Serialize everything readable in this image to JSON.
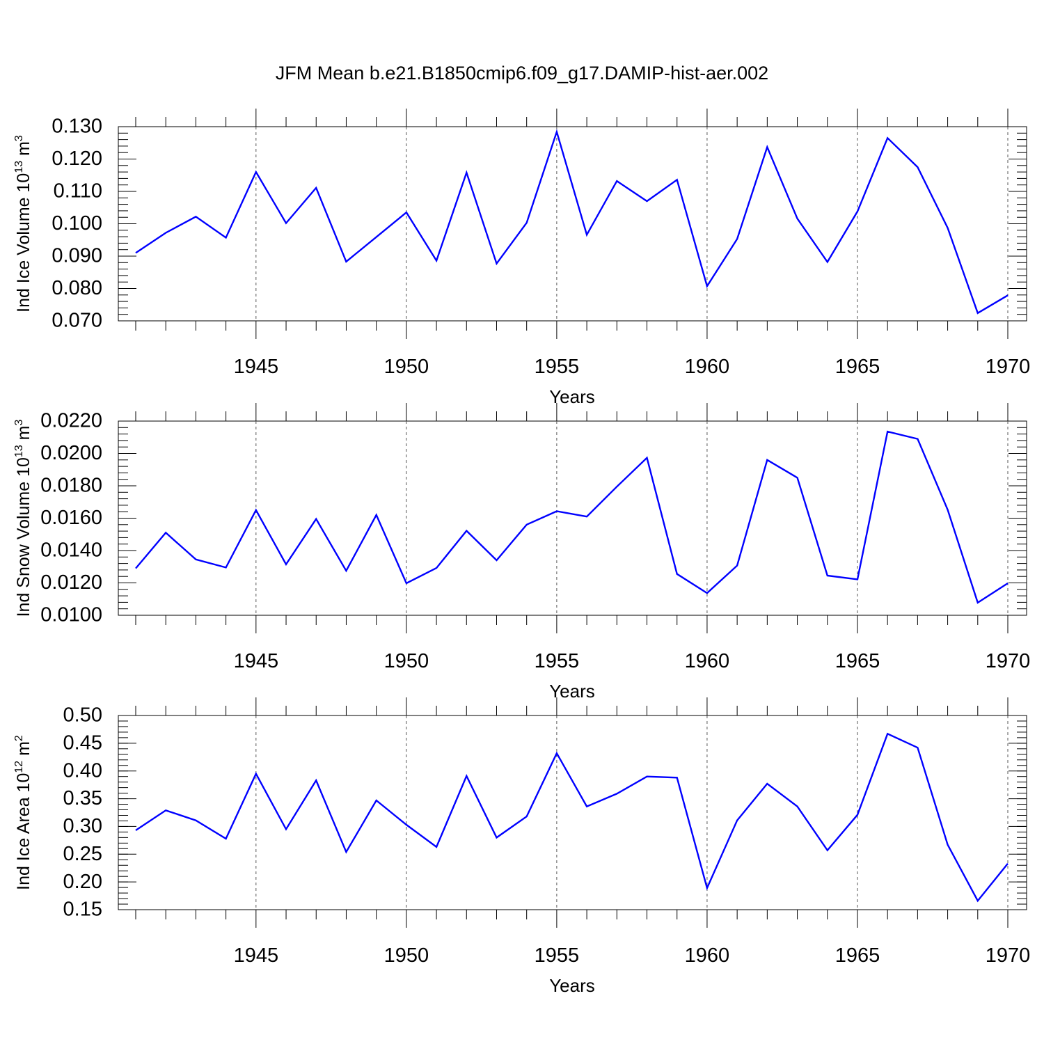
{
  "title": "JFM Mean b.e21.B1850cmip6.f09_g17.DAMIP-hist-aer.002",
  "line_color": "#0000ff",
  "chart_data": [
    {
      "type": "line",
      "title": "",
      "xlabel": "Years",
      "ylabel": {
        "text": "Ind Ice Volume 10",
        "exp": "13",
        "unit": " m",
        "unit_exp": "3"
      },
      "xlim": [
        1941,
        1970
      ],
      "ylim": [
        0.07,
        0.13
      ],
      "x_ticks": [
        1945,
        1950,
        1955,
        1960,
        1965,
        1970
      ],
      "y_ticks": [
        "0.070",
        "0.080",
        "0.090",
        "0.100",
        "0.110",
        "0.120",
        "0.130"
      ],
      "y_tick_values": [
        0.07,
        0.08,
        0.09,
        0.1,
        0.11,
        0.12,
        0.13
      ],
      "y_minor_step": 0.002,
      "series": [
        {
          "name": "Ind Ice Volume",
          "x": [
            1941,
            1942,
            1943,
            1944,
            1945,
            1946,
            1947,
            1948,
            1949,
            1950,
            1951,
            1952,
            1953,
            1954,
            1955,
            1956,
            1957,
            1958,
            1959,
            1960,
            1961,
            1962,
            1963,
            1964,
            1965,
            1966,
            1967,
            1968,
            1969,
            1970
          ],
          "values": [
            0.091,
            0.0972,
            0.1022,
            0.0957,
            0.116,
            0.1002,
            0.1111,
            0.0883,
            0.0959,
            0.1035,
            0.0886,
            0.1158,
            0.0877,
            0.1003,
            0.1284,
            0.0966,
            0.1132,
            0.107,
            0.1136,
            0.0807,
            0.0953,
            0.1237,
            0.1016,
            0.0882,
            0.1038,
            0.1265,
            0.1175,
            0.0987,
            0.0724,
            0.0779
          ]
        }
      ]
    },
    {
      "type": "line",
      "title": "",
      "xlabel": "Years",
      "ylabel": {
        "text": "Ind Snow Volume 10",
        "exp": "13",
        "unit": " m",
        "unit_exp": "3"
      },
      "xlim": [
        1941,
        1970
      ],
      "ylim": [
        0.01,
        0.022
      ],
      "x_ticks": [
        1945,
        1950,
        1955,
        1960,
        1965,
        1970
      ],
      "y_ticks": [
        "0.0100",
        "0.0120",
        "0.0140",
        "0.0160",
        "0.0180",
        "0.0200",
        "0.0220"
      ],
      "y_tick_values": [
        0.01,
        0.012,
        0.014,
        0.016,
        0.018,
        0.02,
        0.022
      ],
      "y_minor_step": 0.0004,
      "series": [
        {
          "name": "Ind Snow Volume",
          "x": [
            1941,
            1942,
            1943,
            1944,
            1945,
            1946,
            1947,
            1948,
            1949,
            1950,
            1951,
            1952,
            1953,
            1954,
            1955,
            1956,
            1957,
            1958,
            1959,
            1960,
            1961,
            1962,
            1963,
            1964,
            1965,
            1966,
            1967,
            1968,
            1969,
            1970
          ],
          "values": [
            0.0129,
            0.0151,
            0.01345,
            0.01295,
            0.0165,
            0.01315,
            0.01595,
            0.01275,
            0.0162,
            0.01198,
            0.01292,
            0.01522,
            0.0134,
            0.0156,
            0.01643,
            0.0161,
            0.01795,
            0.01973,
            0.01255,
            0.01137,
            0.01307,
            0.0196,
            0.0185,
            0.01245,
            0.01222,
            0.02135,
            0.0209,
            0.01652,
            0.01078,
            0.01198
          ]
        }
      ]
    },
    {
      "type": "line",
      "title": "",
      "xlabel": "Years",
      "ylabel": {
        "text": "Ind Ice Area 10",
        "exp": "12",
        "unit": " m",
        "unit_exp": "2"
      },
      "xlim": [
        1941,
        1970
      ],
      "ylim": [
        0.15,
        0.5
      ],
      "x_ticks": [
        1945,
        1950,
        1955,
        1960,
        1965,
        1970
      ],
      "y_ticks": [
        "0.15",
        "0.20",
        "0.25",
        "0.30",
        "0.35",
        "0.40",
        "0.45",
        "0.50"
      ],
      "y_tick_values": [
        0.15,
        0.2,
        0.25,
        0.3,
        0.35,
        0.4,
        0.45,
        0.5
      ],
      "y_minor_step": 0.01,
      "series": [
        {
          "name": "Ind Ice Area",
          "x": [
            1941,
            1942,
            1943,
            1944,
            1945,
            1946,
            1947,
            1948,
            1949,
            1950,
            1951,
            1952,
            1953,
            1954,
            1955,
            1956,
            1957,
            1958,
            1959,
            1960,
            1961,
            1962,
            1963,
            1964,
            1965,
            1966,
            1967,
            1968,
            1969,
            1970
          ],
          "values": [
            0.293,
            0.329,
            0.311,
            0.278,
            0.395,
            0.295,
            0.383,
            0.254,
            0.347,
            0.303,
            0.263,
            0.391,
            0.28,
            0.318,
            0.432,
            0.336,
            0.359,
            0.39,
            0.388,
            0.189,
            0.311,
            0.377,
            0.336,
            0.257,
            0.321,
            0.467,
            0.442,
            0.267,
            0.166,
            0.233
          ]
        }
      ]
    }
  ]
}
